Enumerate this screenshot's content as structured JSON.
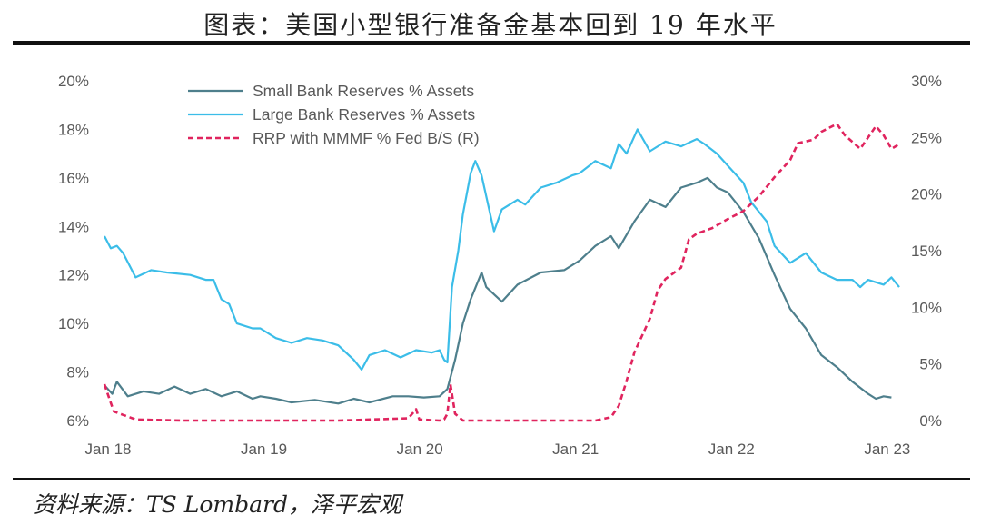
{
  "title": "图表：美国小型银行准备金基本回到 19 年水平",
  "source": "资料来源：TS Lombard，泽平宏观",
  "chart_data": {
    "type": "line",
    "y_left": {
      "range": [
        6,
        20
      ],
      "ticks": [
        "6%",
        "8%",
        "10%",
        "12%",
        "14%",
        "16%",
        "18%",
        "20%"
      ],
      "values": [
        6,
        8,
        10,
        12,
        14,
        16,
        18,
        20
      ]
    },
    "y_right": {
      "range": [
        0,
        30
      ],
      "ticks": [
        "0%",
        "5%",
        "10%",
        "15%",
        "20%",
        "25%",
        "30%"
      ],
      "values": [
        0,
        5,
        10,
        15,
        20,
        25,
        30
      ]
    },
    "x": {
      "range": [
        2018.0,
        2023.1
      ],
      "ticks": [
        "Jan 18",
        "Jan 19",
        "Jan 20",
        "Jan 21",
        "Jan 22",
        "Jan 23"
      ],
      "values": [
        2018,
        2019,
        2020,
        2021,
        2022,
        2023
      ]
    },
    "grid": false,
    "legend_position": "top-left",
    "series": [
      {
        "name": "Small Bank Reserves % Assets",
        "axis": "left",
        "color": "#4e7f8c",
        "dash": "solid",
        "points": [
          [
            2018.0,
            7.45
          ],
          [
            2018.05,
            7.1
          ],
          [
            2018.08,
            7.6
          ],
          [
            2018.15,
            7.0
          ],
          [
            2018.25,
            7.2
          ],
          [
            2018.35,
            7.1
          ],
          [
            2018.45,
            7.4
          ],
          [
            2018.55,
            7.1
          ],
          [
            2018.65,
            7.3
          ],
          [
            2018.75,
            7.0
          ],
          [
            2018.85,
            7.2
          ],
          [
            2018.95,
            6.9
          ],
          [
            2019.0,
            7.0
          ],
          [
            2019.1,
            6.9
          ],
          [
            2019.2,
            6.75
          ],
          [
            2019.35,
            6.85
          ],
          [
            2019.5,
            6.7
          ],
          [
            2019.6,
            6.9
          ],
          [
            2019.7,
            6.75
          ],
          [
            2019.85,
            7.0
          ],
          [
            2019.95,
            7.0
          ],
          [
            2020.05,
            6.95
          ],
          [
            2020.15,
            7.0
          ],
          [
            2020.2,
            7.3
          ],
          [
            2020.25,
            8.5
          ],
          [
            2020.3,
            10.0
          ],
          [
            2020.35,
            11.0
          ],
          [
            2020.42,
            12.1
          ],
          [
            2020.45,
            11.5
          ],
          [
            2020.55,
            10.9
          ],
          [
            2020.65,
            11.6
          ],
          [
            2020.8,
            12.1
          ],
          [
            2020.95,
            12.2
          ],
          [
            2021.05,
            12.6
          ],
          [
            2021.15,
            13.2
          ],
          [
            2021.25,
            13.6
          ],
          [
            2021.3,
            13.1
          ],
          [
            2021.4,
            14.2
          ],
          [
            2021.5,
            15.1
          ],
          [
            2021.6,
            14.8
          ],
          [
            2021.7,
            15.6
          ],
          [
            2021.8,
            15.8
          ],
          [
            2021.87,
            16.0
          ],
          [
            2021.93,
            15.6
          ],
          [
            2022.0,
            15.4
          ],
          [
            2022.1,
            14.6
          ],
          [
            2022.2,
            13.5
          ],
          [
            2022.3,
            12.0
          ],
          [
            2022.4,
            10.6
          ],
          [
            2022.5,
            9.8
          ],
          [
            2022.6,
            8.7
          ],
          [
            2022.7,
            8.2
          ],
          [
            2022.8,
            7.6
          ],
          [
            2022.9,
            7.1
          ],
          [
            2022.95,
            6.9
          ],
          [
            2023.0,
            7.0
          ],
          [
            2023.05,
            6.95
          ]
        ]
      },
      {
        "name": "Large Bank Reserves % Assets",
        "axis": "left",
        "color": "#3bbde8",
        "dash": "solid",
        "points": [
          [
            2018.0,
            13.6
          ],
          [
            2018.04,
            13.1
          ],
          [
            2018.08,
            13.2
          ],
          [
            2018.12,
            12.9
          ],
          [
            2018.2,
            11.9
          ],
          [
            2018.3,
            12.2
          ],
          [
            2018.4,
            12.1
          ],
          [
            2018.55,
            12.0
          ],
          [
            2018.65,
            11.8
          ],
          [
            2018.7,
            11.8
          ],
          [
            2018.75,
            11.0
          ],
          [
            2018.8,
            10.8
          ],
          [
            2018.85,
            10.0
          ],
          [
            2018.95,
            9.8
          ],
          [
            2019.0,
            9.8
          ],
          [
            2019.1,
            9.4
          ],
          [
            2019.2,
            9.2
          ],
          [
            2019.3,
            9.4
          ],
          [
            2019.4,
            9.3
          ],
          [
            2019.5,
            9.1
          ],
          [
            2019.6,
            8.5
          ],
          [
            2019.65,
            8.1
          ],
          [
            2019.7,
            8.7
          ],
          [
            2019.8,
            8.9
          ],
          [
            2019.9,
            8.6
          ],
          [
            2020.0,
            8.9
          ],
          [
            2020.1,
            8.8
          ],
          [
            2020.15,
            8.9
          ],
          [
            2020.18,
            8.5
          ],
          [
            2020.2,
            8.4
          ],
          [
            2020.23,
            11.5
          ],
          [
            2020.27,
            13.0
          ],
          [
            2020.3,
            14.5
          ],
          [
            2020.35,
            16.2
          ],
          [
            2020.38,
            16.7
          ],
          [
            2020.42,
            16.1
          ],
          [
            2020.5,
            13.8
          ],
          [
            2020.55,
            14.7
          ],
          [
            2020.65,
            15.1
          ],
          [
            2020.7,
            14.9
          ],
          [
            2020.8,
            15.6
          ],
          [
            2020.9,
            15.8
          ],
          [
            2021.0,
            16.1
          ],
          [
            2021.05,
            16.2
          ],
          [
            2021.15,
            16.7
          ],
          [
            2021.25,
            16.4
          ],
          [
            2021.3,
            17.4
          ],
          [
            2021.35,
            17.0
          ],
          [
            2021.42,
            18.0
          ],
          [
            2021.5,
            17.1
          ],
          [
            2021.6,
            17.5
          ],
          [
            2021.7,
            17.3
          ],
          [
            2021.8,
            17.6
          ],
          [
            2021.85,
            17.4
          ],
          [
            2021.93,
            17.0
          ],
          [
            2022.0,
            16.5
          ],
          [
            2022.1,
            15.8
          ],
          [
            2022.15,
            15.0
          ],
          [
            2022.25,
            14.2
          ],
          [
            2022.3,
            13.2
          ],
          [
            2022.4,
            12.5
          ],
          [
            2022.5,
            12.9
          ],
          [
            2022.6,
            12.1
          ],
          [
            2022.7,
            11.8
          ],
          [
            2022.8,
            11.8
          ],
          [
            2022.85,
            11.5
          ],
          [
            2022.9,
            11.8
          ],
          [
            2023.0,
            11.6
          ],
          [
            2023.05,
            11.9
          ],
          [
            2023.1,
            11.5
          ]
        ]
      },
      {
        "name": "RRP with MMMF % Fed B/S (R)",
        "axis": "right",
        "color": "#e0245e",
        "dash": "dashed",
        "points": [
          [
            2018.0,
            3.2
          ],
          [
            2018.03,
            2.0
          ],
          [
            2018.06,
            0.8
          ],
          [
            2018.12,
            0.5
          ],
          [
            2018.2,
            0.1
          ],
          [
            2018.5,
            0.0
          ],
          [
            2019.0,
            0.0
          ],
          [
            2019.5,
            0.0
          ],
          [
            2019.95,
            0.2
          ],
          [
            2020.0,
            1.0
          ],
          [
            2020.02,
            0.1
          ],
          [
            2020.15,
            0.0
          ],
          [
            2020.18,
            0.1
          ],
          [
            2020.2,
            0.6
          ],
          [
            2020.22,
            3.2
          ],
          [
            2020.25,
            0.6
          ],
          [
            2020.3,
            0.0
          ],
          [
            2020.5,
            0.0
          ],
          [
            2020.9,
            0.0
          ],
          [
            2021.15,
            0.0
          ],
          [
            2021.25,
            0.3
          ],
          [
            2021.3,
            1.3
          ],
          [
            2021.35,
            3.5
          ],
          [
            2021.4,
            6.0
          ],
          [
            2021.45,
            7.5
          ],
          [
            2021.5,
            9.0
          ],
          [
            2021.55,
            11.5
          ],
          [
            2021.6,
            12.5
          ],
          [
            2021.65,
            13.0
          ],
          [
            2021.7,
            13.5
          ],
          [
            2021.75,
            16.0
          ],
          [
            2021.8,
            16.5
          ],
          [
            2021.9,
            17.0
          ],
          [
            2022.0,
            17.8
          ],
          [
            2022.1,
            18.5
          ],
          [
            2022.2,
            19.8
          ],
          [
            2022.3,
            21.5
          ],
          [
            2022.4,
            23.0
          ],
          [
            2022.45,
            24.5
          ],
          [
            2022.55,
            24.8
          ],
          [
            2022.6,
            25.5
          ],
          [
            2022.7,
            26.2
          ],
          [
            2022.75,
            25.2
          ],
          [
            2022.85,
            24.0
          ],
          [
            2022.95,
            26.0
          ],
          [
            2023.0,
            25.2
          ],
          [
            2023.05,
            24.0
          ],
          [
            2023.1,
            24.4
          ]
        ]
      }
    ]
  }
}
